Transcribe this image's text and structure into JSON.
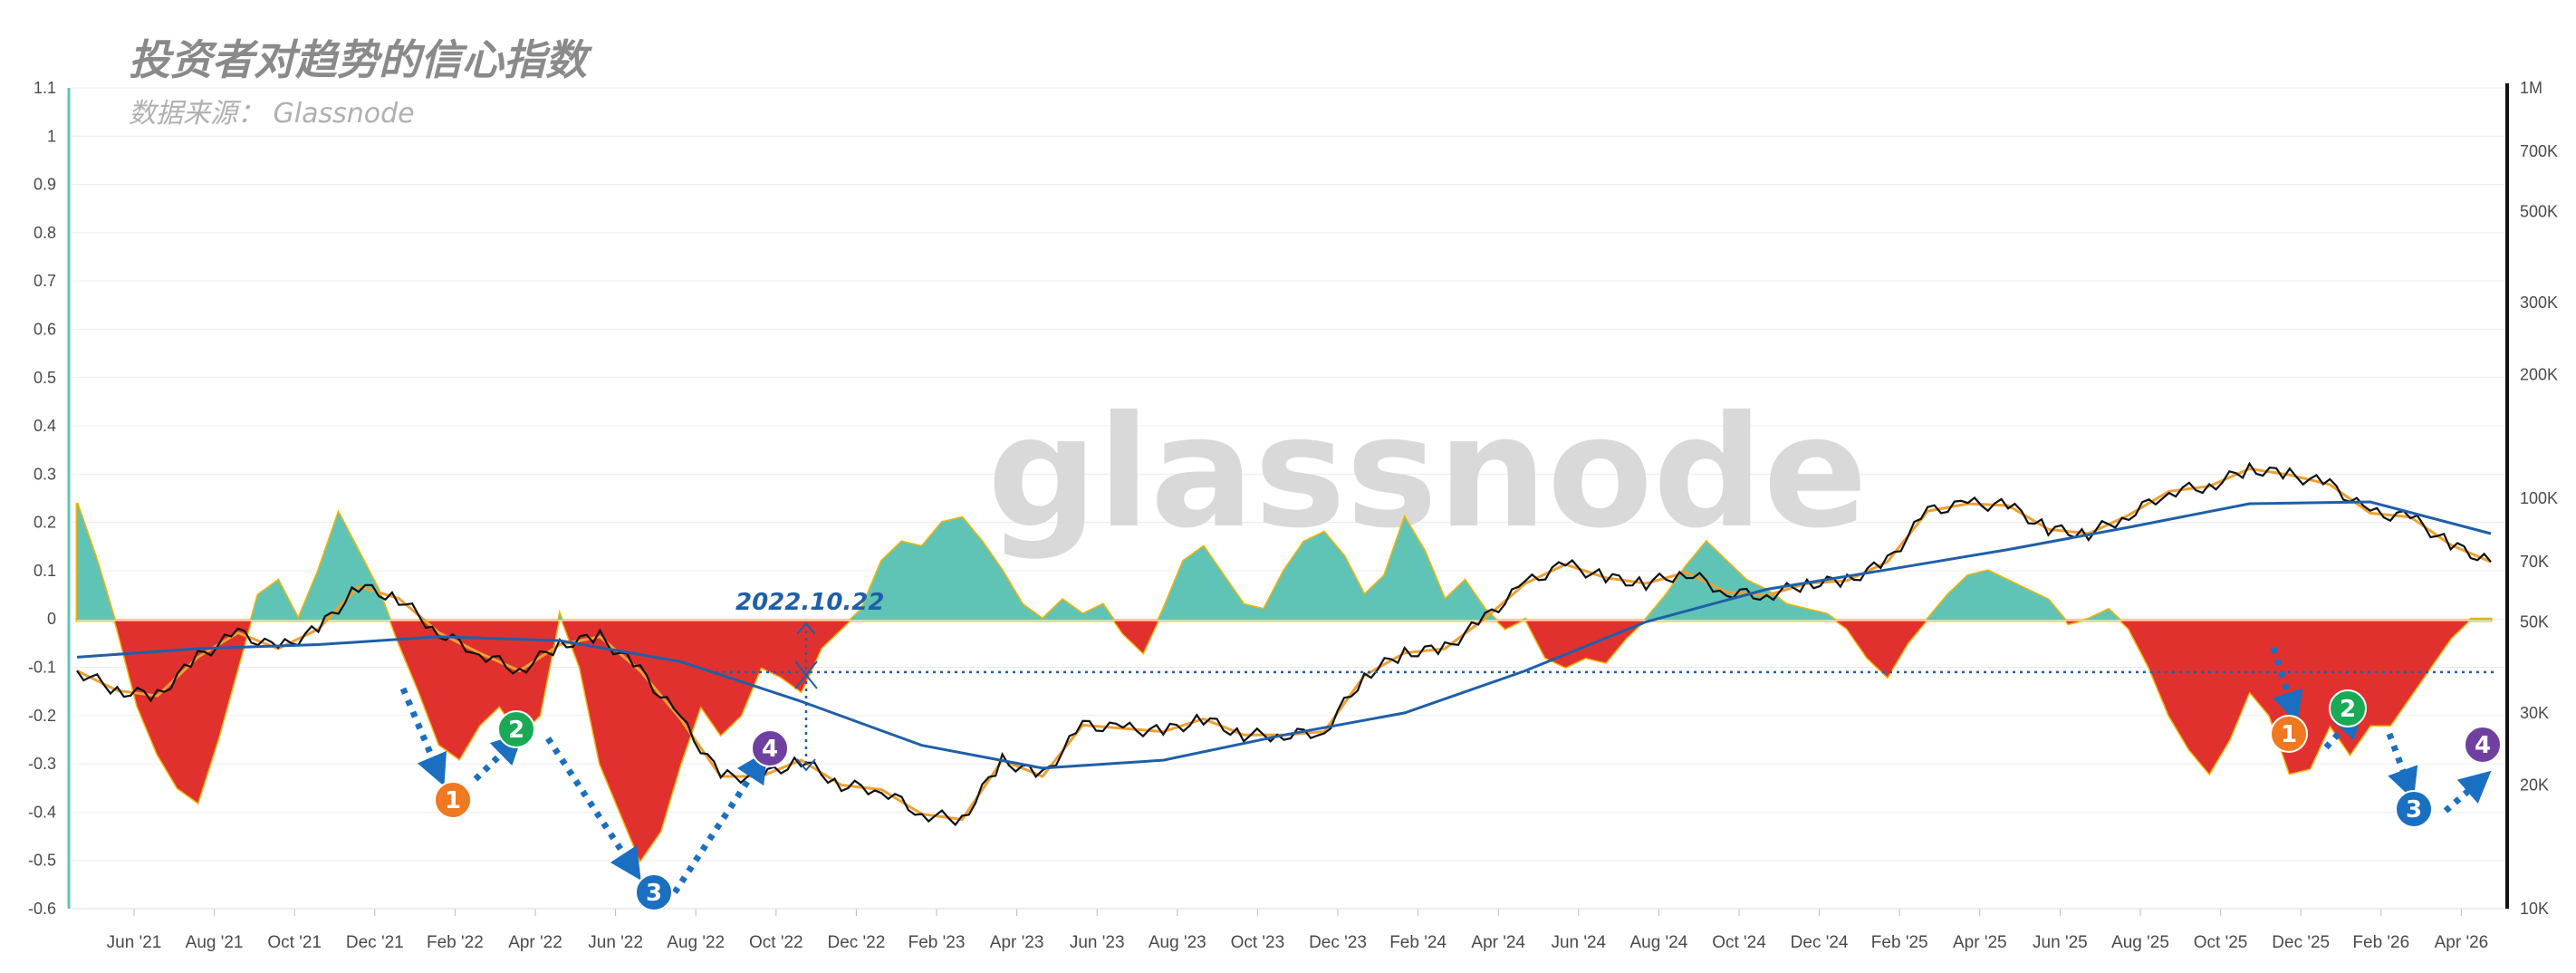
{
  "header": {
    "title": "投资者对趋势的信心指数",
    "subtitle": "数据来源：  Glassnode"
  },
  "watermark": "glassnode",
  "colors": {
    "positive_fill": "#5fc4b6",
    "negative_fill": "#e0312f",
    "neutral_fill": "#f5b400",
    "price_line": "#111111",
    "short_ma": "#f0a030",
    "long_ma": "#1f5fa8",
    "badge_1": "#f07820",
    "badge_2": "#1aaa55",
    "badge_3": "#1a6fc0",
    "badge_4": "#7040a0",
    "arrow": "#1a6fc0"
  },
  "chart_data": {
    "type": "area",
    "x_ticks": [
      "Jun '21",
      "Aug '21",
      "Oct '21",
      "Dec '21",
      "Feb '22",
      "Apr '22",
      "Jun '22",
      "Aug '22",
      "Oct '22",
      "Dec '22",
      "Feb '23",
      "Apr '23",
      "Jun '23",
      "Aug '23",
      "Oct '23",
      "Dec '23",
      "Feb '24",
      "Apr '24",
      "Jun '24",
      "Aug '24",
      "Oct '24",
      "Dec '24",
      "Feb '25",
      "Apr '25",
      "Jun '25",
      "Aug '25",
      "Oct '25",
      "Dec '25",
      "Feb '26",
      "Apr '26"
    ],
    "y_left_ticks": [
      "1.1",
      "1",
      "0.9",
      "0.8",
      "0.7",
      "0.6",
      "0.5",
      "0.4",
      "0.3",
      "0.2",
      "0.1",
      "0",
      "-0.1",
      "-0.2",
      "-0.3",
      "-0.4",
      "-0.5",
      "-0.6"
    ],
    "ylim_left": [
      -0.6,
      1.1
    ],
    "y_right_ticks": [
      "1M",
      "700K",
      "500K",
      "300K",
      "200K",
      "100K",
      "70K",
      "50K",
      "30K",
      "20K",
      "10K"
    ],
    "ylim_right": [
      10000,
      1000000
    ],
    "y_right_scale": "log",
    "confidence_index": {
      "months": [
        0,
        0.5,
        1,
        1.5,
        2,
        2.5,
        3,
        3.5,
        4,
        4.5,
        5,
        5.5,
        6,
        6.5,
        7,
        7.5,
        8,
        8.5,
        9,
        9.5,
        10,
        10.5,
        11,
        11.5,
        12,
        12.5,
        13,
        13.5,
        14,
        14.5,
        15,
        15.5,
        16,
        16.5,
        17,
        17.5,
        18,
        18.5,
        19,
        19.5,
        20,
        20.5,
        21,
        21.5,
        22,
        22.5,
        23,
        23.5,
        24,
        24.5,
        25,
        25.5,
        26,
        26.5,
        27,
        27.5,
        28,
        28.5,
        29,
        29.5,
        30,
        30.5,
        31,
        31.5,
        32,
        32.5,
        33,
        33.5,
        34,
        34.5,
        35,
        35.5,
        36,
        36.5,
        37,
        37.5,
        38,
        38.5,
        39,
        39.5,
        40,
        40.5,
        41,
        41.5,
        42,
        42.5,
        43,
        43.5,
        44,
        44.5,
        45,
        45.5,
        46,
        46.5,
        47,
        47.5,
        48,
        48.5,
        49,
        49.5,
        50,
        50.5,
        51,
        51.5,
        52,
        52.5,
        53,
        53.5,
        54,
        54.5,
        55,
        55.5,
        56,
        56.5,
        57,
        57.5,
        58,
        58.5,
        59,
        59.5,
        60
      ],
      "values": [
        0.24,
        0.12,
        -0.02,
        -0.18,
        -0.28,
        -0.35,
        -0.38,
        -0.25,
        -0.1,
        0.05,
        0.08,
        0.0,
        0.1,
        0.22,
        0.14,
        0.06,
        -0.05,
        -0.15,
        -0.26,
        -0.29,
        -0.22,
        -0.18,
        -0.24,
        -0.2,
        0.01,
        -0.1,
        -0.3,
        -0.4,
        -0.5,
        -0.44,
        -0.3,
        -0.18,
        -0.24,
        -0.2,
        -0.1,
        -0.12,
        -0.15,
        -0.06,
        -0.02,
        0.02,
        0.12,
        0.16,
        0.15,
        0.2,
        0.21,
        0.16,
        0.1,
        0.03,
        0.0,
        0.04,
        0.01,
        0.03,
        -0.03,
        -0.07,
        0.02,
        0.12,
        0.15,
        0.09,
        0.03,
        0.02,
        0.1,
        0.16,
        0.18,
        0.13,
        0.05,
        0.09,
        0.21,
        0.14,
        0.04,
        0.08,
        0.02,
        -0.02,
        0.0,
        -0.08,
        -0.1,
        -0.08,
        -0.09,
        -0.04,
        0.0,
        0.05,
        0.11,
        0.16,
        0.12,
        0.08,
        0.06,
        0.03,
        0.02,
        0.01,
        -0.02,
        -0.08,
        -0.12,
        -0.05,
        0.0,
        0.05,
        0.09,
        0.1,
        0.08,
        0.06,
        0.04,
        -0.01,
        0.0,
        0.02,
        -0.02,
        -0.1,
        -0.2,
        -0.27,
        -0.32,
        -0.25,
        -0.15,
        -0.2,
        -0.32,
        -0.31,
        -0.22,
        -0.28,
        -0.22,
        -0.22,
        -0.16,
        -0.1,
        -0.04,
        0.0,
        0.0
      ]
    },
    "price": {
      "months": [
        0,
        1,
        2,
        3,
        4,
        5,
        6,
        7,
        8,
        9,
        10,
        11,
        12,
        13,
        14,
        15,
        16,
        17,
        18,
        19,
        20,
        21,
        22,
        23,
        24,
        25,
        26,
        27,
        28,
        29,
        30,
        31,
        32,
        33,
        34,
        35,
        36,
        37,
        38,
        39,
        40,
        41,
        42,
        43,
        44,
        45,
        46,
        47,
        48,
        49,
        50,
        51,
        52,
        53,
        54,
        55,
        56,
        57,
        58,
        59,
        60
      ],
      "values": [
        38000,
        34000,
        33000,
        41000,
        47000,
        43000,
        48000,
        61000,
        57000,
        47000,
        42000,
        38000,
        44000,
        46000,
        38000,
        29000,
        21000,
        21000,
        23000,
        20000,
        19500,
        17000,
        16500,
        23000,
        21000,
        28000,
        27500,
        27000,
        29000,
        26500,
        26500,
        27000,
        37000,
        42000,
        43000,
        51000,
        62000,
        69000,
        64000,
        62000,
        66000,
        59000,
        58000,
        62000,
        63000,
        70000,
        93000,
        97000,
        96000,
        84000,
        82000,
        91000,
        104000,
        107000,
        118000,
        114000,
        108000,
        92000,
        90000,
        77000,
        70000
      ]
    },
    "long_ma": {
      "months": [
        0,
        3,
        6,
        9,
        12,
        15,
        18,
        21,
        24,
        27,
        30,
        33,
        36,
        39,
        42,
        45,
        48,
        51,
        54,
        57,
        60
      ],
      "values": [
        41000,
        43000,
        44000,
        46000,
        45000,
        40000,
        32000,
        25000,
        22000,
        23000,
        26500,
        30000,
        38000,
        50000,
        60000,
        67000,
        75000,
        85000,
        97000,
        98000,
        82000
      ]
    },
    "annotation_date": "2022.10.22",
    "reference_level": -0.11,
    "markers": [
      "1",
      "2",
      "3",
      "4",
      "1",
      "2",
      "3",
      "4"
    ]
  }
}
